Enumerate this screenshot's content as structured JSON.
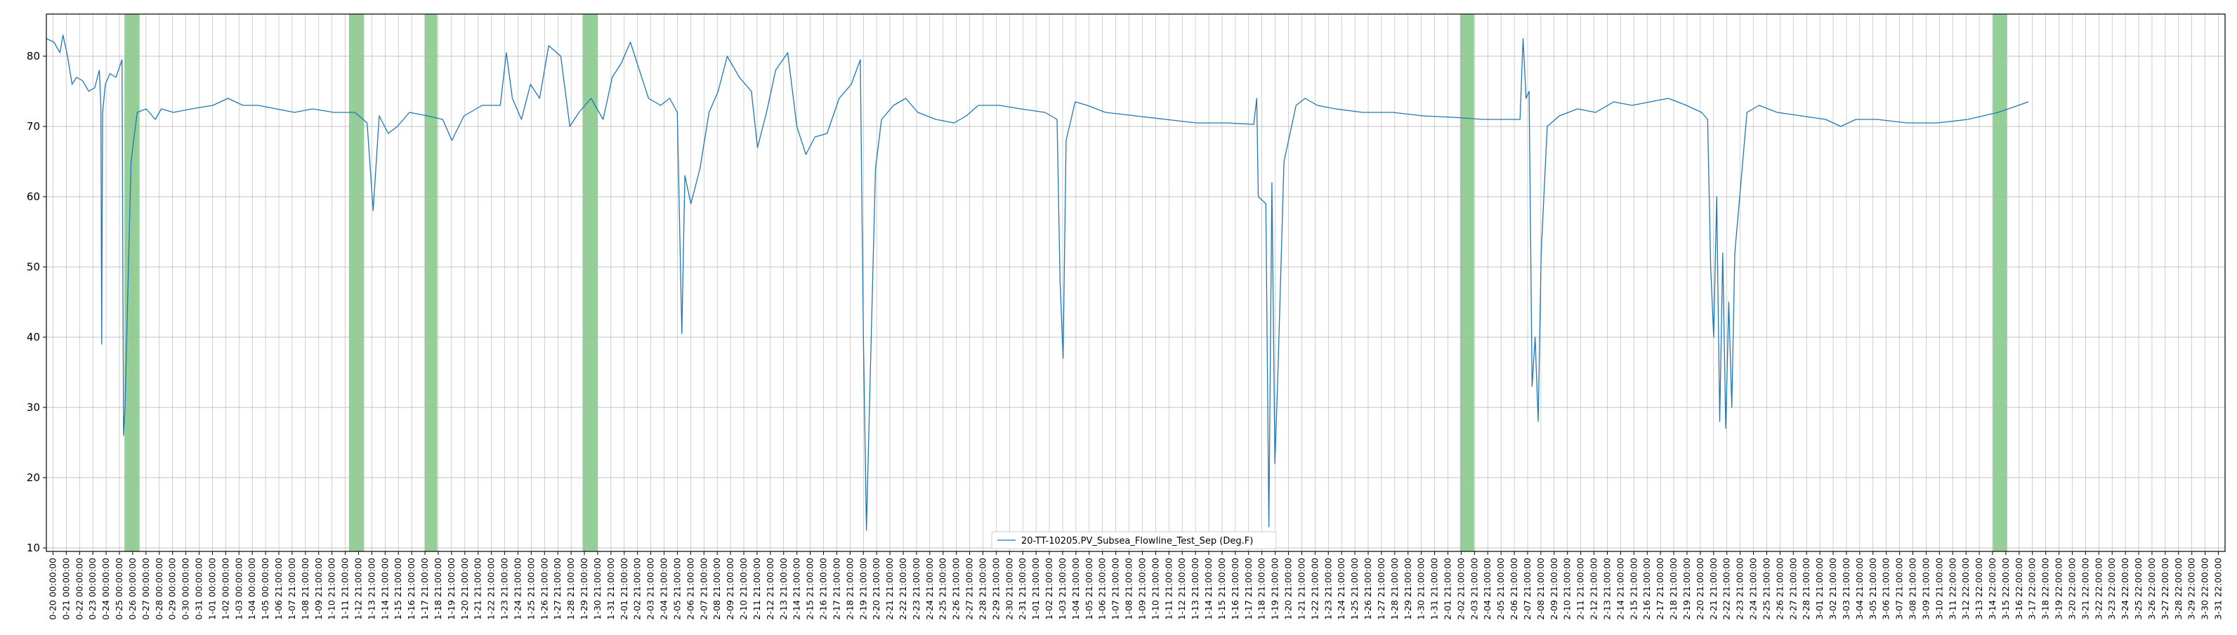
{
  "chart_data": {
    "type": "line",
    "title": "",
    "xlabel": "",
    "ylabel": "",
    "ylim": [
      9.5,
      86
    ],
    "yticks": [
      10,
      20,
      30,
      40,
      50,
      60,
      70,
      80
    ],
    "grid": true,
    "legend_position": "bottom-center",
    "series": [
      {
        "name": "20-TT-10205.PV_Subsea_Flowline_Test_Sep (Deg.F)",
        "color": "#1f77b4",
        "x_day_range": [
          0,
          72
        ],
        "points": [
          [
            0.0,
            82.5
          ],
          [
            0.25,
            82.0
          ],
          [
            0.45,
            80.5
          ],
          [
            0.55,
            83.0
          ],
          [
            0.7,
            80.0
          ],
          [
            0.85,
            76.0
          ],
          [
            1.0,
            77.0
          ],
          [
            1.2,
            76.5
          ],
          [
            1.4,
            75.0
          ],
          [
            1.6,
            75.5
          ],
          [
            1.75,
            78.0
          ],
          [
            1.8,
            73.0
          ],
          [
            1.83,
            39.0
          ],
          [
            1.86,
            72.0
          ],
          [
            1.95,
            76.0
          ],
          [
            2.1,
            77.5
          ],
          [
            2.3,
            77.0
          ],
          [
            2.5,
            79.5
          ],
          [
            2.55,
            26.0
          ],
          [
            2.6,
            30.0
          ],
          [
            2.8,
            65.0
          ],
          [
            3.0,
            72.0
          ],
          [
            3.3,
            72.5
          ],
          [
            3.6,
            71.0
          ],
          [
            3.8,
            72.5
          ],
          [
            4.2,
            72.0
          ],
          [
            4.8,
            72.5
          ],
          [
            5.5,
            73.0
          ],
          [
            6.0,
            74.0
          ],
          [
            6.5,
            73.0
          ],
          [
            7.0,
            73.0
          ],
          [
            7.6,
            72.5
          ],
          [
            8.2,
            72.0
          ],
          [
            8.8,
            72.5
          ],
          [
            9.5,
            72.0
          ],
          [
            10.2,
            72.0
          ],
          [
            10.6,
            70.5
          ],
          [
            10.8,
            58.0
          ],
          [
            11.0,
            71.5
          ],
          [
            11.3,
            69.0
          ],
          [
            11.6,
            70.0
          ],
          [
            12.0,
            72.0
          ],
          [
            12.6,
            71.5
          ],
          [
            13.1,
            71.0
          ],
          [
            13.4,
            68.0
          ],
          [
            13.8,
            71.5
          ],
          [
            14.4,
            73.0
          ],
          [
            15.0,
            73.0
          ],
          [
            15.2,
            80.5
          ],
          [
            15.4,
            74.0
          ],
          [
            15.7,
            71.0
          ],
          [
            16.0,
            76.0
          ],
          [
            16.3,
            74.0
          ],
          [
            16.6,
            81.5
          ],
          [
            17.0,
            80.0
          ],
          [
            17.3,
            70.0
          ],
          [
            17.6,
            72.0
          ],
          [
            18.0,
            74.0
          ],
          [
            18.4,
            71.0
          ],
          [
            18.7,
            77.0
          ],
          [
            19.0,
            79.0
          ],
          [
            19.3,
            82.0
          ],
          [
            19.6,
            78.0
          ],
          [
            19.9,
            74.0
          ],
          [
            20.3,
            73.0
          ],
          [
            20.6,
            74.0
          ],
          [
            20.85,
            72.0
          ],
          [
            21.0,
            40.5
          ],
          [
            21.1,
            63.0
          ],
          [
            21.3,
            59.0
          ],
          [
            21.6,
            64.0
          ],
          [
            21.9,
            72.0
          ],
          [
            22.2,
            75.0
          ],
          [
            22.5,
            80.0
          ],
          [
            22.9,
            77.0
          ],
          [
            23.3,
            75.0
          ],
          [
            23.5,
            67.0
          ],
          [
            23.8,
            72.0
          ],
          [
            24.1,
            78.0
          ],
          [
            24.5,
            80.5
          ],
          [
            24.8,
            70.0
          ],
          [
            25.1,
            66.0
          ],
          [
            25.4,
            68.5
          ],
          [
            25.8,
            69.0
          ],
          [
            26.2,
            74.0
          ],
          [
            26.6,
            76.0
          ],
          [
            26.9,
            79.5
          ],
          [
            27.0,
            40.0
          ],
          [
            27.1,
            12.5
          ],
          [
            27.2,
            30.0
          ],
          [
            27.4,
            64.0
          ],
          [
            27.6,
            71.0
          ],
          [
            28.0,
            73.0
          ],
          [
            28.4,
            74.0
          ],
          [
            28.8,
            72.0
          ],
          [
            29.4,
            71.0
          ],
          [
            30.0,
            70.5
          ],
          [
            30.4,
            71.5
          ],
          [
            30.8,
            73.0
          ],
          [
            31.5,
            73.0
          ],
          [
            32.2,
            72.5
          ],
          [
            33.0,
            72.0
          ],
          [
            33.4,
            71.0
          ],
          [
            33.5,
            48.0
          ],
          [
            33.6,
            37.0
          ],
          [
            33.7,
            68.0
          ],
          [
            34.0,
            73.5
          ],
          [
            34.4,
            73.0
          ],
          [
            35.0,
            72.0
          ],
          [
            36.0,
            71.5
          ],
          [
            37.0,
            71.0
          ],
          [
            38.0,
            70.5
          ],
          [
            39.0,
            70.5
          ],
          [
            39.9,
            70.3
          ],
          [
            40.0,
            74.0
          ],
          [
            40.05,
            60.0
          ],
          [
            40.3,
            59.0
          ],
          [
            40.4,
            13.0
          ],
          [
            40.5,
            62.0
          ],
          [
            40.6,
            22.0
          ],
          [
            40.7,
            35.0
          ],
          [
            40.9,
            65.0
          ],
          [
            41.3,
            73.0
          ],
          [
            41.6,
            74.0
          ],
          [
            42.0,
            73.0
          ],
          [
            42.6,
            72.5
          ],
          [
            43.5,
            72.0
          ],
          [
            44.5,
            72.0
          ],
          [
            45.5,
            71.5
          ],
          [
            46.5,
            71.3
          ],
          [
            47.5,
            71.0
          ],
          [
            48.4,
            71.0
          ],
          [
            48.7,
            71.0
          ],
          [
            48.8,
            82.5
          ],
          [
            48.9,
            74.0
          ],
          [
            49.0,
            75.0
          ],
          [
            49.1,
            33.0
          ],
          [
            49.2,
            40.0
          ],
          [
            49.3,
            28.0
          ],
          [
            49.4,
            52.0
          ],
          [
            49.6,
            70.0
          ],
          [
            50.0,
            71.5
          ],
          [
            50.6,
            72.5
          ],
          [
            51.2,
            72.0
          ],
          [
            51.8,
            73.5
          ],
          [
            52.4,
            73.0
          ],
          [
            53.0,
            73.5
          ],
          [
            53.6,
            74.0
          ],
          [
            54.2,
            73.0
          ],
          [
            54.7,
            72.0
          ],
          [
            54.9,
            71.0
          ],
          [
            55.0,
            50.0
          ],
          [
            55.1,
            40.0
          ],
          [
            55.2,
            60.0
          ],
          [
            55.3,
            28.0
          ],
          [
            55.4,
            52.0
          ],
          [
            55.5,
            27.0
          ],
          [
            55.6,
            45.0
          ],
          [
            55.7,
            30.0
          ],
          [
            55.8,
            52.0
          ],
          [
            56.0,
            62.0
          ],
          [
            56.2,
            72.0
          ],
          [
            56.6,
            73.0
          ],
          [
            57.2,
            72.0
          ],
          [
            58.0,
            71.5
          ],
          [
            58.8,
            71.0
          ],
          [
            59.3,
            70.0
          ],
          [
            59.8,
            71.0
          ],
          [
            60.5,
            71.0
          ],
          [
            61.5,
            70.5
          ],
          [
            62.5,
            70.5
          ],
          [
            63.5,
            71.0
          ],
          [
            64.5,
            72.0
          ],
          [
            65.5,
            73.5
          ]
        ]
      }
    ],
    "highlight_bands": [
      [
        2.58,
        3.08
      ],
      [
        10.0,
        10.5
      ],
      [
        12.5,
        12.92
      ],
      [
        17.72,
        18.22
      ],
      [
        46.72,
        47.18
      ],
      [
        64.33,
        64.8
      ]
    ],
    "highlight_color": "#4caf50",
    "x_tick_labels": [
      "0-20 00:00:00",
      "0-21 00:00:00",
      "0-22 00:00:00",
      "0-23 00:00:00",
      "0-24 00:00:00",
      "0-25 00:00:00",
      "0-26 00:00:00",
      "0-27 00:00:00",
      "0-28 00:00:00",
      "0-29 00:00:00",
      "0-30 00:00:00",
      "0-31 00:00:00",
      "1-01 00:00:00",
      "1-02 00:00:00",
      "1-03 00:00:00",
      "1-04 00:00:00",
      "1-05 00:00:00",
      "1-06 21:00:00",
      "1-07 21:00:00",
      "1-08 21:00:00",
      "1-09 21:00:00",
      "1-10 21:00:00",
      "1-11 21:00:00",
      "1-12 21:00:00",
      "1-13 21:00:00",
      "1-14 21:00:00",
      "1-15 21:00:00",
      "1-16 21:00:00",
      "1-17 21:00:00",
      "1-18 21:00:00",
      "1-19 21:00:00",
      "1-20 21:00:00",
      "1-21 21:00:00",
      "1-22 21:00:00",
      "1-23 21:00:00",
      "1-24 21:00:00",
      "1-25 21:00:00",
      "1-26 21:00:00",
      "1-27 21:00:00",
      "1-28 21:00:00",
      "1-29 21:00:00",
      "1-30 21:00:00",
      "1-31 21:00:00",
      "2-01 21:00:00",
      "2-02 21:00:00",
      "2-03 21:00:00",
      "2-04 21:00:00",
      "2-05 21:00:00",
      "2-06 21:00:00",
      "2-07 21:00:00",
      "2-08 21:00:00",
      "2-09 21:00:00",
      "2-10 21:00:00",
      "2-11 21:00:00",
      "2-12 21:00:00",
      "2-13 21:00:00",
      "2-14 21:00:00",
      "2-15 21:00:00",
      "2-16 21:00:00",
      "2-17 21:00:00",
      "2-18 21:00:00",
      "2-19 21:00:00",
      "2-20 21:00:00",
      "2-21 21:00:00",
      "2-22 21:00:00",
      "2-23 21:00:00",
      "2-24 21:00:00",
      "2-25 21:00:00",
      "2-26 21:00:00",
      "2-27 21:00:00",
      "2-28 21:00:00",
      "2-29 21:00:00",
      "2-30 21:00:00",
      "2-31 21:00:00",
      "1-01 21:00:00",
      "1-02 21:00:00",
      "1-03 21:00:00",
      "1-04 21:00:00",
      "1-05 21:00:00",
      "1-06 21:00:00",
      "1-07 21:00:00",
      "1-08 21:00:00",
      "1-09 21:00:00",
      "1-10 21:00:00",
      "1-11 21:00:00",
      "1-12 21:00:00",
      "1-13 21:00:00",
      "1-14 21:00:00",
      "1-15 21:00:00",
      "1-16 21:00:00",
      "1-17 21:00:00",
      "1-18 21:00:00",
      "1-19 21:00:00",
      "1-20 21:00:00",
      "1-21 21:00:00",
      "1-22 21:00:00",
      "1-23 21:00:00",
      "1-24 21:00:00",
      "1-25 21:00:00",
      "1-26 21:00:00",
      "1-27 21:00:00",
      "1-28 21:00:00",
      "1-29 21:00:00",
      "1-30 21:00:00",
      "1-31 21:00:00",
      "2-01 21:00:00",
      "2-02 21:00:00",
      "2-03 21:00:00",
      "2-04 21:00:00",
      "2-05 21:00:00",
      "2-06 21:00:00",
      "2-07 21:00:00",
      "2-08 21:00:00",
      "2-09 21:00:00",
      "2-10 21:00:00",
      "2-11 21:00:00",
      "2-12 21:00:00",
      "2-13 21:00:00",
      "2-14 21:00:00",
      "2-15 21:00:00",
      "2-16 21:00:00",
      "2-17 21:00:00",
      "2-18 21:00:00",
      "2-19 21:00:00",
      "2-20 21:00:00",
      "2-21 21:00:00",
      "2-22 21:00:00",
      "2-23 21:00:00",
      "2-24 21:00:00",
      "2-25 21:00:00",
      "2-26 21:00:00",
      "2-27 21:00:00",
      "2-28 21:00:00",
      "3-01 21:00:00",
      "3-02 21:00:00",
      "3-03 21:00:00",
      "3-04 21:00:00",
      "3-05 21:00:00",
      "3-06 21:00:00",
      "3-07 21:00:00",
      "3-08 21:00:00",
      "3-09 21:00:00",
      "3-10 21:00:00",
      "3-11 22:00:00",
      "3-12 22:00:00",
      "3-13 22:00:00",
      "3-14 22:00:00",
      "3-15 22:00:00",
      "3-16 22:00:00",
      "3-17 22:00:00",
      "3-18 22:00:00",
      "3-19 22:00:00",
      "3-20 22:00:00",
      "3-21 22:00:00",
      "3-22 22:00:00",
      "3-23 22:00:00",
      "3-24 22:00:00",
      "3-25 22:00:00",
      "3-26 22:00:00",
      "3-27 22:00:00",
      "3-28 22:00:00",
      "3-29 22:00:00",
      "3-30 22:00:00",
      "3-31 22:00:00"
    ]
  }
}
